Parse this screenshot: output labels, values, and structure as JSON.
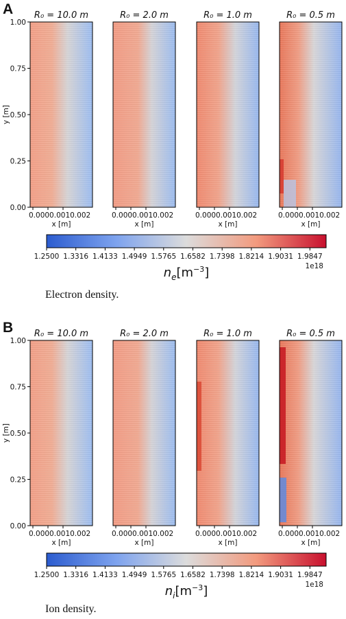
{
  "figure": {
    "panel_a_letter": "A",
    "panel_b_letter": "B",
    "caption_a": "Electron density.",
    "caption_b": "Ion density."
  },
  "colors": {
    "low": "#2c5ccf",
    "mid": "#dcdcdc",
    "high": "#c8102e"
  },
  "chart_data": [
    {
      "type": "heatmap",
      "quantity": "Electron density",
      "titles": [
        "R₀ = 10.0 m",
        "R₀ = 2.0 m",
        "R₀ = 1.0 m",
        "R₀ = 0.5 m"
      ],
      "r0": [
        10.0,
        2.0,
        1.0,
        0.5
      ],
      "xlabel": "x [m]",
      "ylabel": "y [m]",
      "xtick_labels": "0.0000.0010.002",
      "yticks": [
        "0.00",
        "0.25",
        "0.50",
        "0.75",
        "1.00"
      ],
      "ylim": [
        0.0,
        1.0
      ],
      "colorbar_ticks": [
        "1.2500",
        "1.3316",
        "1.4133",
        "1.4949",
        "1.5765",
        "1.6582",
        "1.7398",
        "1.8214",
        "1.9031",
        "1.9847"
      ],
      "colorbar_range": [
        1.25,
        2.03
      ],
      "colorbar_label": "n_e [m^-3]",
      "colorbar_label_main": "n",
      "colorbar_label_sub": "e",
      "colorbar_label_unit": "[m",
      "colorbar_label_exp": "−3",
      "colorbar_label_close": "]",
      "colorbar_multiplier": "1e18"
    },
    {
      "type": "heatmap",
      "quantity": "Ion density",
      "titles": [
        "R₀ = 10.0 m",
        "R₀ = 2.0 m",
        "R₀ = 1.0 m",
        "R₀ = 0.5 m"
      ],
      "r0": [
        10.0,
        2.0,
        1.0,
        0.5
      ],
      "xlabel": "x [m]",
      "ylabel": "y [m]",
      "xtick_labels": "0.0000.0010.002",
      "yticks": [
        "0.00",
        "0.25",
        "0.50",
        "0.75",
        "1.00"
      ],
      "ylim": [
        0.0,
        1.0
      ],
      "colorbar_ticks": [
        "1.2500",
        "1.3316",
        "1.4133",
        "1.4949",
        "1.5765",
        "1.6582",
        "1.7398",
        "1.8214",
        "1.9031",
        "1.9847"
      ],
      "colorbar_range": [
        1.25,
        2.03
      ],
      "colorbar_label": "n_i [m^-3]",
      "colorbar_label_main": "n",
      "colorbar_label_sub": "i",
      "colorbar_label_unit": "[m",
      "colorbar_label_exp": "−3",
      "colorbar_label_close": "]",
      "colorbar_multiplier": "1e18"
    }
  ]
}
